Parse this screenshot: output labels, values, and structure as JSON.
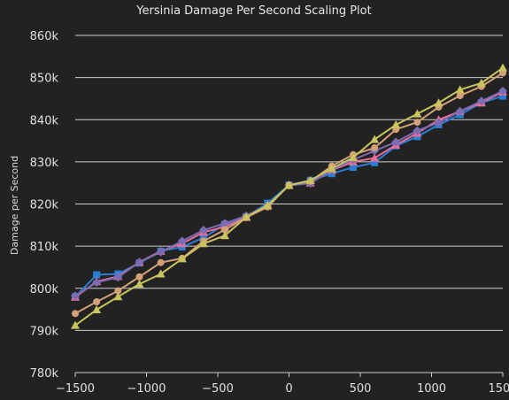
{
  "chart_data": {
    "type": "line",
    "title": "Yersinia Damage Per Second Scaling Plot",
    "xlabel": "",
    "ylabel": "Damage per Second",
    "xlim": [
      -1500,
      1500
    ],
    "ylim": [
      780000,
      860000
    ],
    "x_ticks": [
      -1500,
      -1000,
      -500,
      0,
      500,
      1000,
      1500
    ],
    "x_tick_labels": [
      "−1500",
      "−1000",
      "−500",
      "0",
      "500",
      "1000",
      "1500"
    ],
    "y_ticks": [
      780000,
      790000,
      800000,
      810000,
      820000,
      830000,
      840000,
      850000,
      860000
    ],
    "y_tick_labels": [
      "780k",
      "790k",
      "800k",
      "810k",
      "820k",
      "830k",
      "840k",
      "850k",
      "860k"
    ],
    "grid": true,
    "legend": "none",
    "x": [
      -1500,
      -1350,
      -1200,
      -1050,
      -900,
      -750,
      -600,
      -450,
      -300,
      -150,
      0,
      150,
      300,
      450,
      600,
      750,
      900,
      1050,
      1200,
      1350,
      1500
    ],
    "series": [
      {
        "color": "#2a7fd4",
        "marker": "square",
        "values": [
          798000,
          803200,
          803400,
          806000,
          808800,
          809800,
          812000,
          815200,
          817000,
          820200,
          824500,
          825600,
          827200,
          828700,
          829800,
          833800,
          836000,
          838800,
          841200,
          844000,
          845600
        ]
      },
      {
        "color": "#e66e9c",
        "marker": "triangle",
        "values": [
          797900,
          801600,
          802800,
          806200,
          808800,
          810600,
          813300,
          814600,
          816800,
          819500,
          824500,
          825000,
          828000,
          830000,
          830900,
          834000,
          836800,
          840000,
          842000,
          844000,
          846600
        ]
      },
      {
        "color": "#7d6bb2",
        "marker": "diamond",
        "values": [
          798200,
          801400,
          802600,
          806200,
          808600,
          811200,
          813800,
          815400,
          817200,
          819700,
          824400,
          824900,
          828100,
          830500,
          832600,
          834700,
          837400,
          839300,
          842000,
          844400,
          846800
        ]
      },
      {
        "color": "#d4a077",
        "marker": "circle",
        "values": [
          794000,
          796800,
          799400,
          802700,
          806100,
          807100,
          811200,
          813900,
          816800,
          819300,
          824500,
          825400,
          829000,
          831700,
          833300,
          837700,
          839400,
          843000,
          845700,
          847900,
          851100
        ]
      },
      {
        "color": "#c9c45e",
        "marker": "triangle",
        "values": [
          791200,
          794900,
          798000,
          801000,
          803400,
          807000,
          810600,
          812500,
          816900,
          819700,
          824400,
          825600,
          828400,
          831000,
          835300,
          838800,
          841400,
          844000,
          847100,
          848700,
          852300
        ]
      }
    ]
  }
}
